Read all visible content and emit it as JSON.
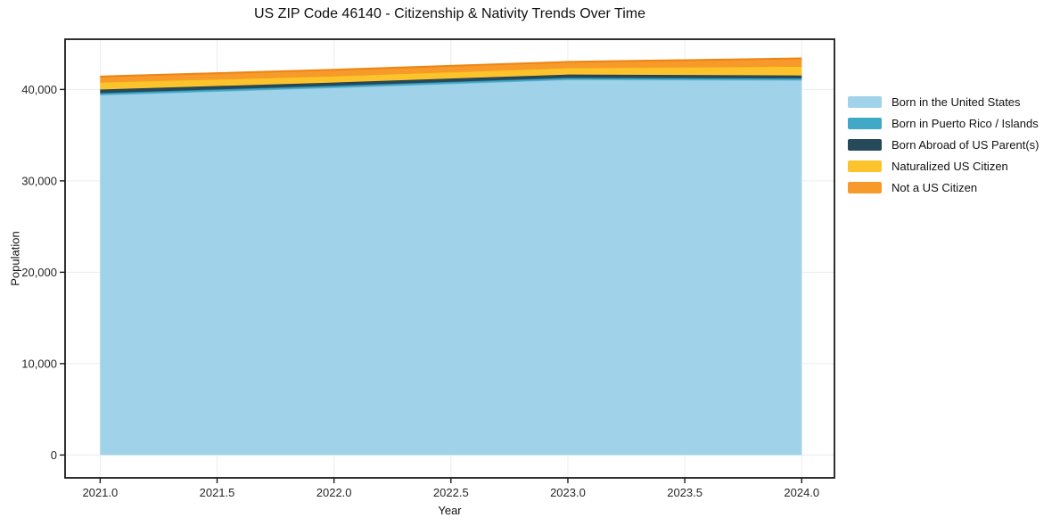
{
  "chart_data": {
    "type": "area",
    "stacked": true,
    "title": "US ZIP Code 46140 - Citizenship & Nativity Trends Over Time",
    "xlabel": "Year",
    "ylabel": "Population",
    "x": [
      2021,
      2022,
      2023,
      2024
    ],
    "series": [
      {
        "name": "Born in the United States",
        "color": "#a0d2e9",
        "edge": "#78b8d8",
        "values": [
          39400,
          40200,
          41070,
          41020
        ]
      },
      {
        "name": "Born in Puerto Rico / Islands",
        "color": "#41a9c5",
        "edge": "#2d93b0",
        "values": [
          200,
          200,
          200,
          200
        ]
      },
      {
        "name": "Born Abroad of US Parent(s)",
        "color": "#27495c",
        "edge": "#1c394a",
        "values": [
          390,
          360,
          360,
          310
        ]
      },
      {
        "name": "Naturalized US Citizen",
        "color": "#fcc32d",
        "edge": "#f0a714",
        "values": [
          810,
          710,
          740,
          1010
        ]
      },
      {
        "name": "Not a US Citizen",
        "color": "#f79a2b",
        "edge": "#ee8410",
        "values": [
          620,
          690,
          650,
          860
        ]
      }
    ],
    "totals": [
      41420,
      42160,
      43020,
      43400
    ],
    "xticks": [
      2021.0,
      2021.5,
      2022.0,
      2022.5,
      2023.0,
      2023.5,
      2024.0
    ],
    "xticklabels": [
      "2021.0",
      "2021.5",
      "2022.0",
      "2022.5",
      "2023.0",
      "2023.5",
      "2024.0"
    ],
    "yticks": [
      0,
      10000,
      20000,
      30000,
      40000
    ],
    "yticklabels": [
      "0",
      "10,000",
      "20,000",
      "30,000",
      "40,000"
    ],
    "xlim": [
      2020.85,
      2024.14
    ],
    "ylim": [
      -2500,
      45500
    ],
    "grid": true,
    "grid_color": "#ececec",
    "axis_color": "#1a1a1a",
    "background_color": "#ffffff",
    "legend_position": "right",
    "legend_frame": false
  }
}
